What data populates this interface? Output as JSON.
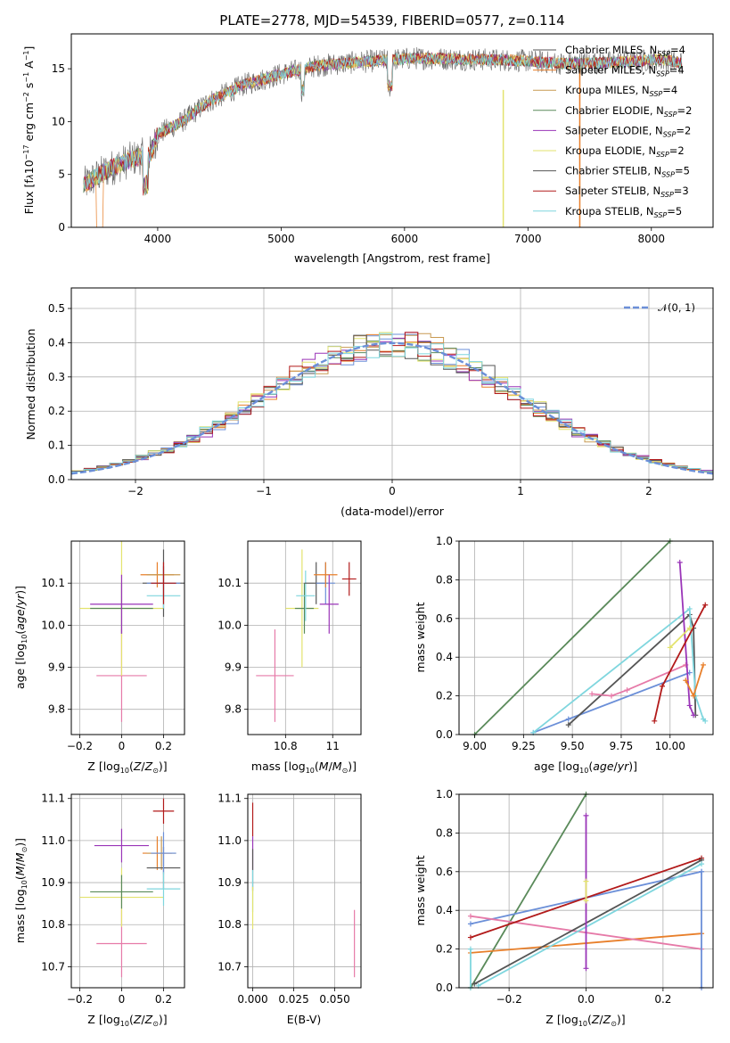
{
  "figure": {
    "title": "PLATE=2778, MJD=54539, FIBERID=0577, z=0.114"
  },
  "colors": {
    "chabrier_miles": "#6b8fd8",
    "salpeter_miles": "#e87f2a",
    "kroupa_miles": "#c89a52",
    "chabrier_elodie": "#5a8a5a",
    "salpeter_elodie": "#9a35b8",
    "kroupa_elodie": "#e3e36e",
    "chabrier_stelib": "#555555",
    "salpeter_stelib": "#b21a1a",
    "kroupa_stelib": "#7fd6de",
    "pink": "#e67aa8",
    "grid": "#b0b0b0"
  },
  "chart_data": [
    {
      "id": "spectrum",
      "type": "line",
      "xlabel": "wavelength [Angstrom, rest frame]",
      "ylabel": "Flux [f",
      "xlim": [
        3300,
        8500
      ],
      "ylim": [
        0,
        18.3
      ],
      "xticks": [
        4000,
        5000,
        6000,
        7000,
        8000
      ],
      "yticks": [
        0,
        5,
        10,
        15
      ],
      "legend_position": "top-right",
      "legend": [
        {
          "label": "Chabrier MILES, N",
          "n": "4",
          "color": "#555555"
        },
        {
          "label": "Salpeter MILES, N",
          "n": "4",
          "color": "#e87f2a"
        },
        {
          "label": "Kroupa MILES, N",
          "n": "4",
          "color": "#c89a52"
        },
        {
          "label": "Chabrier ELODIE, N",
          "n": "2",
          "color": "#5a8a5a"
        },
        {
          "label": "Salpeter ELODIE, N",
          "n": "2",
          "color": "#9a35b8"
        },
        {
          "label": "Kroupa ELODIE, N",
          "n": "2",
          "color": "#e3e36e"
        },
        {
          "label": "Chabrier STELIB, N",
          "n": "5",
          "color": "#555555"
        },
        {
          "label": "Salpeter STELIB, N",
          "n": "3",
          "color": "#b21a1a"
        },
        {
          "label": "Kroupa STELIB, N",
          "n": "5",
          "color": "#7fd6de"
        }
      ],
      "continuum": [
        [
          3400,
          4.0
        ],
        [
          3600,
          5.5
        ],
        [
          3800,
          6.5
        ],
        [
          3950,
          7.0
        ],
        [
          4000,
          8.8
        ],
        [
          4200,
          10.0
        ],
        [
          4400,
          11.8
        ],
        [
          4700,
          13.5
        ],
        [
          5000,
          14.5
        ],
        [
          5300,
          15.3
        ],
        [
          5700,
          15.7
        ],
        [
          6100,
          16.0
        ],
        [
          6500,
          15.9
        ],
        [
          6900,
          15.8
        ],
        [
          7300,
          15.5
        ],
        [
          7700,
          15.6
        ],
        [
          8100,
          15.9
        ],
        [
          8250,
          15.5
        ]
      ]
    },
    {
      "id": "residuals",
      "type": "histogram",
      "xlabel": "(data-model)/error",
      "ylabel": "Normed distribution",
      "xlim": [
        -2.5,
        2.5
      ],
      "ylim": [
        0,
        0.56
      ],
      "xticks": [
        -2,
        -1,
        0,
        1,
        2
      ],
      "yticks": [
        0.0,
        0.1,
        0.2,
        0.3,
        0.4,
        0.5
      ],
      "legend": "𝒩(0, 1)",
      "legend_position": "top-right",
      "bin_width": 0.1
    },
    {
      "id": "age_vs_metallicity",
      "type": "scatter",
      "xlabel": "Z [log",
      "ylabel": "age  [log",
      "xlim": [
        -0.24,
        0.3
      ],
      "ylim": [
        9.74,
        10.2
      ],
      "xticks": [
        -0.2,
        0.0,
        0.2
      ],
      "yticks": [
        9.8,
        9.9,
        10.0,
        10.1
      ],
      "points": [
        {
          "x": 0.0,
          "y": 9.88,
          "xerr": 0.12,
          "yerr": 0.11,
          "color": "#e67aa8"
        },
        {
          "x": 0.0,
          "y": 10.04,
          "xerr": 0.2,
          "yerr": 0.16,
          "color": "#e3e36e"
        },
        {
          "x": 0.0,
          "y": 10.04,
          "xerr": 0.15,
          "yerr": 0.06,
          "color": "#5a8a5a"
        },
        {
          "x": 0.0,
          "y": 10.05,
          "xerr": 0.15,
          "yerr": 0.07,
          "color": "#9a35b8"
        },
        {
          "x": 0.17,
          "y": 10.12,
          "xerr": 0.08,
          "yerr": 0.03,
          "color": "#e87f2a"
        },
        {
          "x": 0.2,
          "y": 10.12,
          "xerr": 0.08,
          "yerr": 0.02,
          "color": "#c89a52"
        },
        {
          "x": 0.2,
          "y": 10.1,
          "xerr": 0.1,
          "yerr": 0.08,
          "color": "#555555"
        },
        {
          "x": 0.2,
          "y": 10.1,
          "xerr": 0.08,
          "yerr": 0.04,
          "color": "#6b8fd8"
        },
        {
          "x": 0.2,
          "y": 10.07,
          "xerr": 0.08,
          "yerr": 0.03,
          "color": "#7fd6de"
        },
        {
          "x": 0.2,
          "y": 10.1,
          "xerr": 0.06,
          "yerr": 0.05,
          "color": "#b21a1a"
        }
      ]
    },
    {
      "id": "age_vs_mass",
      "type": "scatter",
      "xlabel": "mass [log",
      "ylabel": "",
      "xlim": [
        10.64,
        11.12
      ],
      "ylim": [
        9.74,
        10.2
      ],
      "xticks": [
        10.8,
        11.0
      ],
      "yticks": [
        9.8,
        9.9,
        10.0,
        10.1
      ],
      "points": [
        {
          "x": 10.755,
          "y": 9.88,
          "xerr": 0.08,
          "yerr": 0.11,
          "color": "#e67aa8"
        },
        {
          "x": 10.87,
          "y": 10.04,
          "xerr": 0.07,
          "yerr": 0.14,
          "color": "#e3e36e"
        },
        {
          "x": 10.88,
          "y": 10.04,
          "xerr": 0.04,
          "yerr": 0.06,
          "color": "#5a8a5a"
        },
        {
          "x": 10.885,
          "y": 10.07,
          "xerr": 0.04,
          "yerr": 0.06,
          "color": "#7fd6de"
        },
        {
          "x": 10.93,
          "y": 10.1,
          "xerr": 0.05,
          "yerr": 0.05,
          "color": "#555555"
        },
        {
          "x": 10.97,
          "y": 10.1,
          "xerr": 0.04,
          "yerr": 0.05,
          "color": "#6b8fd8"
        },
        {
          "x": 10.97,
          "y": 10.12,
          "xerr": 0.05,
          "yerr": 0.03,
          "color": "#e87f2a"
        },
        {
          "x": 10.985,
          "y": 10.05,
          "xerr": 0.04,
          "yerr": 0.07,
          "color": "#9a35b8"
        },
        {
          "x": 11.07,
          "y": 10.11,
          "xerr": 0.03,
          "yerr": 0.04,
          "color": "#b21a1a"
        }
      ]
    },
    {
      "id": "massweight_vs_age",
      "type": "line",
      "xlabel": "age  [log",
      "ylabel": "mass weight",
      "xlim": [
        8.92,
        10.22
      ],
      "ylim": [
        0,
        1
      ],
      "xticks": [
        9.0,
        9.25,
        9.5,
        9.75,
        10.0
      ],
      "yticks": [
        0.0,
        0.2,
        0.4,
        0.6,
        0.8,
        1.0
      ],
      "series": [
        {
          "color": "#5a8a5a",
          "x": [
            9.0,
            10.0
          ],
          "y": [
            0.0,
            1.0
          ]
        },
        {
          "color": "#6b8fd8",
          "x": [
            9.3,
            9.48,
            10.1
          ],
          "y": [
            0.01,
            0.08,
            0.32
          ]
        },
        {
          "color": "#555555",
          "x": [
            9.48,
            10.1,
            10.12,
            10.13
          ],
          "y": [
            0.05,
            0.62,
            0.55,
            0.1
          ]
        },
        {
          "color": "#7fd6de",
          "x": [
            9.3,
            10.1,
            10.13,
            10.17,
            10.18
          ],
          "y": [
            0.01,
            0.65,
            0.2,
            0.08,
            0.07
          ]
        },
        {
          "color": "#e67aa8",
          "x": [
            9.6,
            9.7,
            9.78,
            10.08
          ],
          "y": [
            0.21,
            0.2,
            0.23,
            0.36
          ]
        },
        {
          "color": "#9a35b8",
          "x": [
            10.05,
            10.1,
            10.12
          ],
          "y": [
            0.89,
            0.15,
            0.1
          ]
        },
        {
          "color": "#e87f2a",
          "x": [
            10.08,
            10.12,
            10.17
          ],
          "y": [
            0.28,
            0.2,
            0.36
          ]
        },
        {
          "color": "#b21a1a",
          "x": [
            9.92,
            9.96,
            10.18
          ],
          "y": [
            0.07,
            0.25,
            0.67
          ]
        },
        {
          "color": "#e3e36e",
          "x": [
            10.0,
            10.1
          ],
          "y": [
            0.45,
            0.55
          ]
        }
      ]
    },
    {
      "id": "mass_vs_metallicity",
      "type": "scatter",
      "xlabel": "Z [log",
      "ylabel": "mass [log",
      "xlim": [
        -0.24,
        0.3
      ],
      "ylim": [
        10.65,
        11.11
      ],
      "xticks": [
        -0.2,
        0.0,
        0.2
      ],
      "yticks": [
        10.7,
        10.8,
        10.9,
        11.0,
        11.1
      ],
      "points": [
        {
          "x": 0.0,
          "y": 10.755,
          "xerr": 0.12,
          "yerr": 0.08,
          "color": "#e67aa8"
        },
        {
          "x": 0.0,
          "y": 10.865,
          "xerr": 0.2,
          "yerr": 0.07,
          "color": "#e3e36e"
        },
        {
          "x": 0.0,
          "y": 10.878,
          "xerr": 0.15,
          "yerr": 0.04,
          "color": "#5a8a5a"
        },
        {
          "x": 0.0,
          "y": 10.988,
          "xerr": 0.13,
          "yerr": 0.04,
          "color": "#9a35b8"
        },
        {
          "x": 0.17,
          "y": 10.97,
          "xerr": 0.07,
          "yerr": 0.04,
          "color": "#e87f2a"
        },
        {
          "x": 0.19,
          "y": 10.97,
          "xerr": 0.07,
          "yerr": 0.04,
          "color": "#c89a52"
        },
        {
          "x": 0.2,
          "y": 10.935,
          "xerr": 0.08,
          "yerr": 0.05,
          "color": "#555555"
        },
        {
          "x": 0.2,
          "y": 10.97,
          "xerr": 0.06,
          "yerr": 0.05,
          "color": "#6b8fd8"
        },
        {
          "x": 0.2,
          "y": 10.885,
          "xerr": 0.08,
          "yerr": 0.04,
          "color": "#7fd6de"
        },
        {
          "x": 0.2,
          "y": 11.07,
          "xerr": 0.05,
          "yerr": 0.03,
          "color": "#b21a1a"
        }
      ]
    },
    {
      "id": "mass_vs_ebv",
      "type": "scatter",
      "xlabel": "E(B-V)",
      "ylabel": "",
      "xlim": [
        -0.003,
        0.066
      ],
      "ylim": [
        10.65,
        11.11
      ],
      "xticks": [
        0.0,
        0.025,
        0.05
      ],
      "xticklabels": [
        "0.000",
        "0.025",
        "0.050"
      ],
      "yticks": [
        10.7,
        10.8,
        10.9,
        11.0,
        11.1
      ],
      "points": [
        {
          "x": 0.0,
          "y": 11.05,
          "xerr": 0,
          "yerr": 0.04,
          "color": "#b21a1a"
        },
        {
          "x": 0.0,
          "y": 10.97,
          "xerr": 0,
          "yerr": 0.04,
          "color": "#9a35b8"
        },
        {
          "x": 0.0,
          "y": 10.93,
          "xerr": 0,
          "yerr": 0.05,
          "color": "#555555"
        },
        {
          "x": 0.0,
          "y": 10.88,
          "xerr": 0,
          "yerr": 0.05,
          "color": "#7fd6de"
        },
        {
          "x": 0.0,
          "y": 10.84,
          "xerr": 0,
          "yerr": 0.05,
          "color": "#e3e36e"
        },
        {
          "x": 0.062,
          "y": 10.755,
          "xerr": 0,
          "yerr": 0.08,
          "color": "#e67aa8"
        }
      ]
    },
    {
      "id": "massweight_vs_metallicity",
      "type": "line",
      "xlabel": "Z [log",
      "ylabel": "mass weight",
      "xlim": [
        -0.33,
        0.33
      ],
      "ylim": [
        0,
        1
      ],
      "xticks": [
        -0.2,
        0.0,
        0.2
      ],
      "yticks": [
        0.0,
        0.2,
        0.4,
        0.6,
        0.8,
        1.0
      ],
      "series": [
        {
          "color": "#5a8a5a",
          "x": [
            -0.3,
            0.0
          ],
          "y": [
            0.0,
            1.0
          ]
        },
        {
          "color": "#6b8fd8",
          "x": [
            -0.3,
            0.3
          ],
          "y": [
            0.33,
            0.6
          ]
        },
        {
          "color": "#e87f2a",
          "x": [
            -0.3,
            0.3
          ],
          "y": [
            0.18,
            0.28
          ]
        },
        {
          "color": "#e67aa8",
          "x": [
            -0.3,
            0.3
          ],
          "y": [
            0.37,
            0.2
          ]
        },
        {
          "color": "#b21a1a",
          "x": [
            -0.3,
            0.3
          ],
          "y": [
            0.26,
            0.67
          ]
        },
        {
          "color": "#555555",
          "x": [
            -0.29,
            0.3
          ],
          "y": [
            0.02,
            0.66
          ]
        },
        {
          "color": "#7fd6de",
          "x": [
            -0.28,
            0.3
          ],
          "y": [
            0.01,
            0.64
          ]
        },
        {
          "color": "#9a35b8",
          "x": [
            0.0,
            0.0
          ],
          "y": [
            0.1,
            0.89
          ]
        },
        {
          "color": "#e3e36e",
          "x": [
            0.0,
            0.0
          ],
          "y": [
            0.45,
            0.55
          ]
        },
        {
          "color": "#7fd6de",
          "x": [
            -0.3,
            -0.3
          ],
          "y": [
            0.0,
            0.2
          ]
        },
        {
          "color": "#6b8fd8",
          "x": [
            0.3,
            0.3
          ],
          "y": [
            0.0,
            0.6
          ]
        }
      ]
    }
  ]
}
